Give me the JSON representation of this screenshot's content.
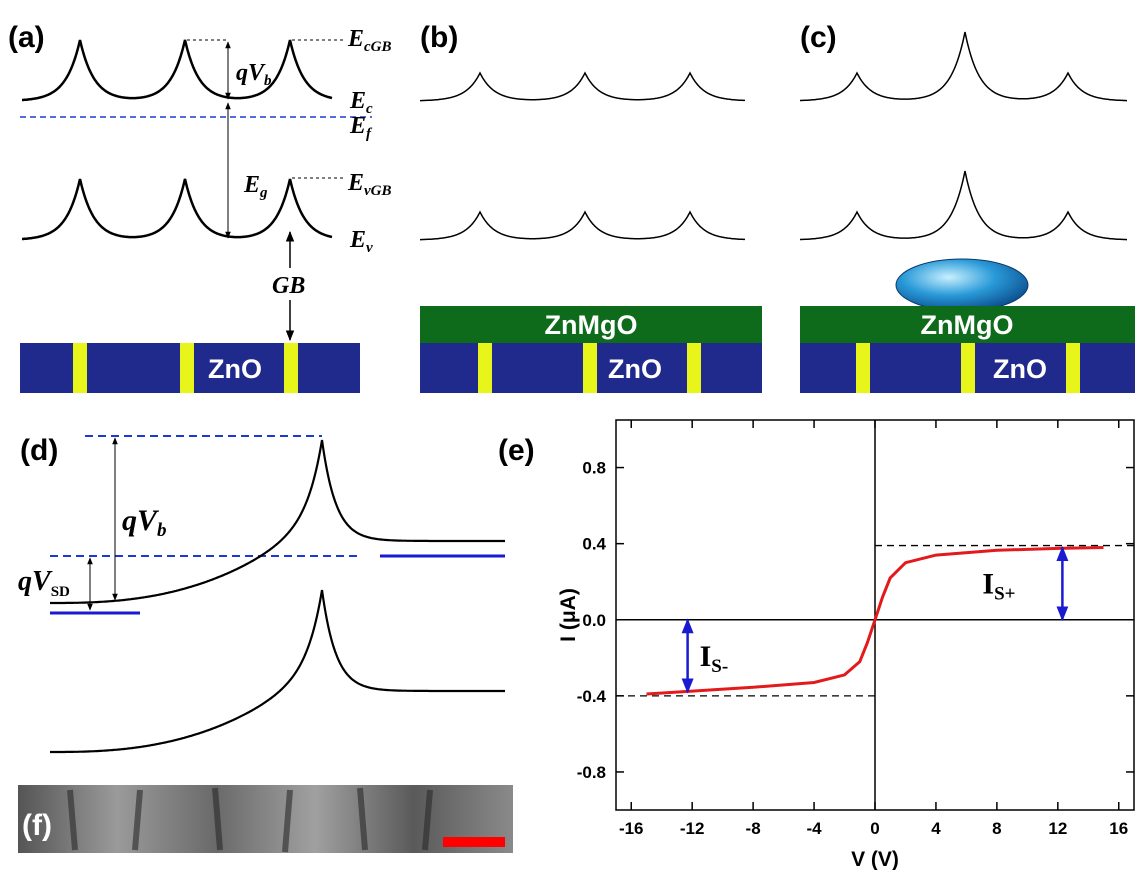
{
  "panels": {
    "a": {
      "label": "(a)",
      "ecgb": {
        "main": "E",
        "sub": "cGB"
      },
      "qvb": {
        "main": "qV",
        "sub": "b"
      },
      "ec": {
        "main": "E",
        "sub": "c"
      },
      "ef": {
        "main": "E",
        "sub": "f"
      },
      "eg": {
        "main": "E",
        "sub": "g"
      },
      "evgb": {
        "main": "E",
        "sub": "vGB"
      },
      "ev": {
        "main": "E",
        "sub": "v"
      },
      "gb": "GB",
      "substrate": "ZnO"
    },
    "b": {
      "label": "(b)",
      "layer": "ZnMgO",
      "substrate": "ZnO"
    },
    "c": {
      "label": "(c)",
      "layer": "ZnMgO",
      "substrate": "ZnO"
    },
    "d": {
      "label": "(d)",
      "qvb": {
        "main": "qV",
        "sub": "b"
      },
      "qvsd": {
        "main": "qV",
        "sub": "SD"
      }
    },
    "e": {
      "label": "(e)"
    },
    "f": {
      "label": "(f)"
    }
  },
  "chart_data": {
    "type": "line",
    "xlabel": "V (V)",
    "ylabel": "I (μA)",
    "xlim": [
      -17,
      17
    ],
    "ylim": [
      -1.0,
      1.05
    ],
    "xticks": [
      -16,
      -12,
      -8,
      -4,
      0,
      4,
      8,
      12,
      16
    ],
    "yticks": [
      -0.8,
      -0.4,
      {
        "value": 0,
        "label": "0.0"
      },
      0.4,
      0.8
    ],
    "series": [
      {
        "color": "#e31a1c",
        "x": [
          -15,
          -12,
          -8,
          -4,
          -2,
          -1,
          -0.5,
          0,
          0.5,
          1,
          2,
          4,
          8,
          12,
          15
        ],
        "values": [
          -0.39,
          -0.375,
          -0.355,
          -0.33,
          -0.29,
          -0.22,
          -0.12,
          0,
          0.12,
          0.22,
          0.3,
          0.34,
          0.365,
          0.375,
          0.38
        ]
      }
    ],
    "reference_levels": [
      {
        "value": 0.39,
        "from": 0,
        "to": 17
      },
      {
        "value": -0.4,
        "from": -17,
        "to": 0
      }
    ],
    "current_arrows": [
      {
        "x": 12.3,
        "from": 0,
        "to": 0.38,
        "label": {
          "main": "I",
          "sub": "S+"
        }
      },
      {
        "x": -12.3,
        "from": 0,
        "to": -0.38,
        "label": {
          "main": "I",
          "sub": "S-"
        }
      }
    ]
  }
}
